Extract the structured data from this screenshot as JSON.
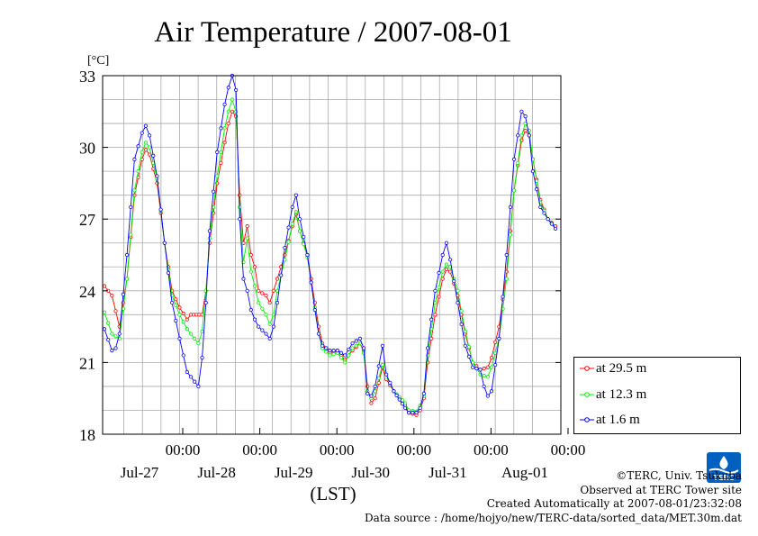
{
  "chart_data": {
    "type": "line",
    "title": "Air Temperature / 2007-08-01",
    "ylabel": "[°C]",
    "xlabel": "(LST)",
    "ylim": [
      18,
      33
    ],
    "yticks": [
      18,
      21,
      24,
      27,
      30,
      33
    ],
    "xlim": [
      0,
      6
    ],
    "time_ticks": [
      {
        "x": 1,
        "time": "00:00",
        "date": "Jul-27"
      },
      {
        "x": 2,
        "time": "00:00",
        "date": "Jul-28"
      },
      {
        "x": 3,
        "time": "00:00",
        "date": "Jul-29"
      },
      {
        "x": 4,
        "time": "00:00",
        "date": "Jul-30"
      },
      {
        "x": 5,
        "time": "00:00",
        "date": "Jul-31"
      },
      {
        "x": 6,
        "time": "00:00",
        "date": "Aug-01"
      }
    ],
    "grid": true,
    "legend_position": "right",
    "series": [
      {
        "name": "at 29.5 m",
        "color": "#ff0000",
        "points": [
          [
            0,
            24.2
          ],
          [
            0.1,
            23.8
          ],
          [
            0.2,
            22.5
          ],
          [
            0.3,
            24.5
          ],
          [
            0.4,
            28
          ],
          [
            0.5,
            29.5
          ],
          [
            0.55,
            29.9
          ],
          [
            0.6,
            29.7
          ],
          [
            0.7,
            28.5
          ],
          [
            0.8,
            26
          ],
          [
            0.9,
            24
          ],
          [
            1,
            23.3
          ],
          [
            1.1,
            22.8
          ],
          [
            1.15,
            23
          ],
          [
            1.3,
            23
          ],
          [
            1.35,
            24
          ],
          [
            1.4,
            26
          ],
          [
            1.5,
            28.5
          ],
          [
            1.6,
            30.2
          ],
          [
            1.65,
            31
          ],
          [
            1.7,
            31.5
          ],
          [
            1.75,
            31.3
          ],
          [
            1.8,
            28
          ],
          [
            1.85,
            26
          ],
          [
            1.9,
            26.7
          ],
          [
            1.95,
            25.5
          ],
          [
            2,
            25
          ],
          [
            2.05,
            24
          ],
          [
            2.15,
            23.8
          ],
          [
            2.2,
            23.5
          ],
          [
            2.25,
            24
          ],
          [
            2.3,
            24.5
          ],
          [
            2.4,
            25.5
          ],
          [
            2.5,
            26.7
          ],
          [
            2.55,
            27.2
          ],
          [
            2.6,
            26.5
          ],
          [
            2.7,
            25.5
          ],
          [
            2.8,
            23.5
          ],
          [
            2.85,
            22.5
          ],
          [
            2.9,
            21.8
          ],
          [
            3,
            21.4
          ],
          [
            3.1,
            21.5
          ],
          [
            3.2,
            21.1
          ],
          [
            3.3,
            21.5
          ],
          [
            3.4,
            21.8
          ],
          [
            3.45,
            21.5
          ],
          [
            3.5,
            20
          ],
          [
            3.55,
            19.3
          ],
          [
            3.6,
            19.5
          ],
          [
            3.7,
            20.8
          ],
          [
            3.75,
            20.3
          ],
          [
            3.85,
            19.8
          ],
          [
            4,
            19.2
          ],
          [
            4.05,
            18.9
          ],
          [
            4.15,
            18.8
          ],
          [
            4.2,
            19
          ],
          [
            4.25,
            19.5
          ],
          [
            4.3,
            21
          ],
          [
            4.4,
            23
          ],
          [
            4.5,
            24.5
          ],
          [
            4.55,
            24.9
          ],
          [
            4.6,
            24.8
          ],
          [
            4.7,
            23.8
          ],
          [
            4.8,
            22.2
          ],
          [
            4.9,
            21
          ],
          [
            5,
            20.7
          ],
          [
            5.1,
            20.8
          ],
          [
            5.15,
            21.2
          ],
          [
            5.25,
            22.5
          ],
          [
            5.35,
            24.8
          ],
          [
            5.45,
            28.2
          ],
          [
            5.55,
            30.3
          ],
          [
            5.6,
            30.7
          ],
          [
            5.65,
            30.5
          ],
          [
            5.7,
            29.5
          ],
          [
            5.8,
            27.8
          ],
          [
            5.9,
            27
          ],
          [
            6,
            26.7
          ]
        ]
      },
      {
        "name": "at 12.3 m",
        "color": "#00ee00",
        "points": [
          [
            0,
            23.1
          ],
          [
            0.1,
            22.2
          ],
          [
            0.2,
            22
          ],
          [
            0.3,
            24.5
          ],
          [
            0.4,
            28.2
          ],
          [
            0.5,
            29.8
          ],
          [
            0.55,
            30.2
          ],
          [
            0.6,
            30
          ],
          [
            0.7,
            28.7
          ],
          [
            0.8,
            26
          ],
          [
            0.9,
            23.8
          ],
          [
            1,
            23
          ],
          [
            1.1,
            22.4
          ],
          [
            1.2,
            22
          ],
          [
            1.25,
            21.8
          ],
          [
            1.3,
            22.3
          ],
          [
            1.35,
            24
          ],
          [
            1.4,
            26.2
          ],
          [
            1.5,
            28.8
          ],
          [
            1.6,
            30.8
          ],
          [
            1.65,
            31.5
          ],
          [
            1.7,
            32
          ],
          [
            1.75,
            31.5
          ],
          [
            1.8,
            27.5
          ],
          [
            1.85,
            25.2
          ],
          [
            1.9,
            26.2
          ],
          [
            1.95,
            24.8
          ],
          [
            2,
            24.2
          ],
          [
            2.05,
            23.5
          ],
          [
            2.15,
            23
          ],
          [
            2.2,
            22.6
          ],
          [
            2.25,
            23
          ],
          [
            2.3,
            24
          ],
          [
            2.4,
            25.3
          ],
          [
            2.5,
            26.8
          ],
          [
            2.55,
            27.3
          ],
          [
            2.6,
            26.5
          ],
          [
            2.7,
            25.4
          ],
          [
            2.8,
            23.3
          ],
          [
            2.85,
            22.2
          ],
          [
            2.9,
            21.6
          ],
          [
            3,
            21.3
          ],
          [
            3.1,
            21.4
          ],
          [
            3.2,
            21
          ],
          [
            3.3,
            21.6
          ],
          [
            3.4,
            21.8
          ],
          [
            3.45,
            21.4
          ],
          [
            3.5,
            19.8
          ],
          [
            3.55,
            19.5
          ],
          [
            3.6,
            19.8
          ],
          [
            3.7,
            20.9
          ],
          [
            3.75,
            20.4
          ],
          [
            3.85,
            19.8
          ],
          [
            4,
            19.3
          ],
          [
            4.05,
            19
          ],
          [
            4.15,
            18.95
          ],
          [
            4.2,
            19.2
          ],
          [
            4.25,
            19.6
          ],
          [
            4.3,
            21.3
          ],
          [
            4.4,
            23.5
          ],
          [
            4.5,
            24.8
          ],
          [
            4.55,
            25.1
          ],
          [
            4.6,
            25
          ],
          [
            4.7,
            24
          ],
          [
            4.8,
            22.3
          ],
          [
            4.9,
            21
          ],
          [
            5,
            20.5
          ],
          [
            5.1,
            20.4
          ],
          [
            5.15,
            20.8
          ],
          [
            5.25,
            22
          ],
          [
            5.35,
            24.5
          ],
          [
            5.45,
            28.2
          ],
          [
            5.55,
            30.5
          ],
          [
            5.6,
            31
          ],
          [
            5.65,
            30.7
          ],
          [
            5.7,
            29.5
          ],
          [
            5.8,
            27.7
          ],
          [
            5.9,
            27
          ],
          [
            6,
            26.6
          ]
        ]
      },
      {
        "name": "at 1.6 m",
        "color": "#0000ff",
        "points": [
          [
            0,
            22.4
          ],
          [
            0.1,
            21.5
          ],
          [
            0.15,
            21.6
          ],
          [
            0.2,
            22.2
          ],
          [
            0.3,
            25.5
          ],
          [
            0.4,
            29.5
          ],
          [
            0.5,
            30.6
          ],
          [
            0.55,
            30.9
          ],
          [
            0.6,
            30.5
          ],
          [
            0.7,
            28.8
          ],
          [
            0.8,
            26
          ],
          [
            0.9,
            23.5
          ],
          [
            1,
            22
          ],
          [
            1.1,
            20.6
          ],
          [
            1.2,
            20.2
          ],
          [
            1.25,
            20
          ],
          [
            1.3,
            21.2
          ],
          [
            1.35,
            23.5
          ],
          [
            1.4,
            26.5
          ],
          [
            1.5,
            29.8
          ],
          [
            1.6,
            31.8
          ],
          [
            1.65,
            32.5
          ],
          [
            1.7,
            33
          ],
          [
            1.75,
            32.4
          ],
          [
            1.8,
            27
          ],
          [
            1.85,
            24.5
          ],
          [
            1.9,
            24
          ],
          [
            1.95,
            23.2
          ],
          [
            2,
            22.8
          ],
          [
            2.05,
            22.5
          ],
          [
            2.15,
            22.2
          ],
          [
            2.2,
            22
          ],
          [
            2.25,
            22.5
          ],
          [
            2.3,
            23.5
          ],
          [
            2.4,
            25.8
          ],
          [
            2.5,
            27.5
          ],
          [
            2.55,
            28
          ],
          [
            2.6,
            27
          ],
          [
            2.7,
            25.5
          ],
          [
            2.8,
            23.2
          ],
          [
            2.85,
            22.2
          ],
          [
            2.9,
            21.7
          ],
          [
            3,
            21.5
          ],
          [
            3.1,
            21.5
          ],
          [
            3.2,
            21.3
          ],
          [
            3.3,
            21.8
          ],
          [
            3.4,
            22
          ],
          [
            3.45,
            21.6
          ],
          [
            3.5,
            19.7
          ],
          [
            3.55,
            19.6
          ],
          [
            3.6,
            20
          ],
          [
            3.7,
            21.7
          ],
          [
            3.75,
            20.5
          ],
          [
            3.85,
            19.8
          ],
          [
            4,
            19.1
          ],
          [
            4.05,
            18.9
          ],
          [
            4.15,
            18.9
          ],
          [
            4.2,
            19.1
          ],
          [
            4.25,
            19.7
          ],
          [
            4.3,
            21.6
          ],
          [
            4.4,
            24
          ],
          [
            4.5,
            25.5
          ],
          [
            4.55,
            26
          ],
          [
            4.6,
            25.3
          ],
          [
            4.7,
            23.5
          ],
          [
            4.8,
            21.7
          ],
          [
            4.9,
            20.8
          ],
          [
            5,
            20.7
          ],
          [
            5.05,
            20
          ],
          [
            5.1,
            19.6
          ],
          [
            5.15,
            19.8
          ],
          [
            5.25,
            22
          ],
          [
            5.35,
            25.5
          ],
          [
            5.45,
            29.5
          ],
          [
            5.55,
            31.5
          ],
          [
            5.6,
            31.3
          ],
          [
            5.65,
            30.5
          ],
          [
            5.7,
            29
          ],
          [
            5.8,
            27.5
          ],
          [
            5.9,
            27
          ],
          [
            6,
            26.6
          ]
        ]
      }
    ]
  },
  "credits": {
    "copyright": "©TERC, Univ. Tsukuba",
    "observed": "Observed at TERC Tower site",
    "created": "Created Automatically at 2007-08-01/23:32:08",
    "source": "Data source : /home/hojyo/new/TERC-data/sorted_data/MET.30m.dat"
  },
  "logo": {
    "text": "TERC",
    "color": "#0060c0"
  }
}
